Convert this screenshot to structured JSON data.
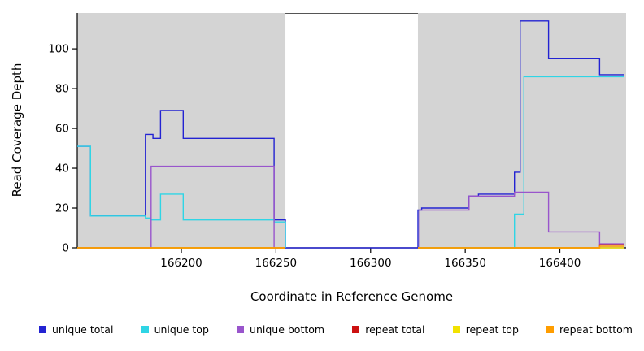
{
  "chart_data": {
    "type": "line",
    "title": "",
    "xlabel": "Coordinate in Reference Genome",
    "ylabel": "Read Coverage Depth",
    "xlim": [
      166145,
      166435
    ],
    "ylim": [
      0,
      118
    ],
    "xticks": [
      166200,
      166250,
      166300,
      166350,
      166400
    ],
    "yticks": [
      0,
      20,
      40,
      60,
      80,
      100
    ],
    "grid": false,
    "legend_position": "bottom",
    "plot_background": "#ffffff",
    "shaded_regions": [
      {
        "x0": 166145,
        "x1": 166255,
        "color": "#d4d4d4"
      },
      {
        "x0": 166325,
        "x1": 166435,
        "color": "#d4d4d4"
      }
    ],
    "series": [
      {
        "name": "unique total",
        "color": "#2323d2",
        "segments": [
          [
            [
              166145,
              51
            ],
            [
              166152,
              51
            ],
            [
              166152,
              16
            ],
            [
              166181,
              16
            ],
            [
              166181,
              57
            ],
            [
              166185,
              57
            ],
            [
              166185,
              55
            ],
            [
              166189,
              55
            ],
            [
              166189,
              69
            ],
            [
              166201,
              69
            ],
            [
              166201,
              55
            ],
            [
              166249,
              55
            ],
            [
              166249,
              14
            ],
            [
              166255,
              14
            ],
            [
              166255,
              0
            ],
            [
              166325,
              0
            ],
            [
              166325,
              19
            ],
            [
              166327,
              19
            ],
            [
              166327,
              20
            ],
            [
              166352,
              20
            ],
            [
              166352,
              26
            ],
            [
              166357,
              26
            ],
            [
              166357,
              27
            ],
            [
              166376,
              27
            ],
            [
              166376,
              38
            ],
            [
              166379,
              38
            ],
            [
              166379,
              114
            ],
            [
              166394,
              114
            ],
            [
              166394,
              95
            ],
            [
              166421,
              95
            ],
            [
              166421,
              87
            ],
            [
              166434,
              87
            ]
          ]
        ]
      },
      {
        "name": "unique top",
        "color": "#2fd5e5",
        "segments": [
          [
            [
              166145,
              51
            ],
            [
              166152,
              51
            ],
            [
              166152,
              16
            ],
            [
              166181,
              16
            ],
            [
              166181,
              15
            ],
            [
              166184,
              15
            ],
            [
              166184,
              14
            ],
            [
              166189,
              14
            ],
            [
              166189,
              27
            ],
            [
              166201,
              27
            ],
            [
              166201,
              14
            ],
            [
              166249,
              14
            ],
            [
              166249,
              13
            ],
            [
              166255,
              13
            ],
            [
              166255,
              0
            ]
          ],
          [
            [
              166325,
              0
            ],
            [
              166376,
              0
            ],
            [
              166376,
              17
            ],
            [
              166381,
              17
            ],
            [
              166381,
              86
            ],
            [
              166434,
              86
            ]
          ]
        ]
      },
      {
        "name": "unique bottom",
        "color": "#9955cc",
        "segments": [
          [
            [
              166145,
              0
            ],
            [
              166184,
              0
            ],
            [
              166184,
              41
            ],
            [
              166249,
              41
            ],
            [
              166249,
              0
            ],
            [
              166255,
              0
            ]
          ],
          [
            [
              166325,
              0
            ],
            [
              166326,
              0
            ],
            [
              166326,
              19
            ],
            [
              166352,
              19
            ],
            [
              166352,
              26
            ],
            [
              166376,
              26
            ],
            [
              166376,
              28
            ],
            [
              166394,
              28
            ],
            [
              166394,
              8
            ],
            [
              166421,
              8
            ],
            [
              166421,
              2
            ],
            [
              166434,
              2
            ]
          ]
        ]
      },
      {
        "name": "repeat total",
        "color": "#cc1111",
        "segments": [
          [
            [
              166145,
              0
            ],
            [
              166255,
              0
            ]
          ],
          [
            [
              166325,
              0
            ],
            [
              166421,
              0
            ],
            [
              166421,
              1.5
            ],
            [
              166434,
              1.5
            ]
          ]
        ]
      },
      {
        "name": "repeat top",
        "color": "#f2e200",
        "segments": [
          [
            [
              166145,
              0
            ],
            [
              166255,
              0
            ]
          ],
          [
            [
              166325,
              0
            ],
            [
              166434,
              0
            ]
          ]
        ]
      },
      {
        "name": "repeat bottom",
        "color": "#ff9d00",
        "segments": [
          [
            [
              166145,
              0
            ],
            [
              166255,
              0
            ]
          ],
          [
            [
              166325,
              0
            ],
            [
              166421,
              0
            ],
            [
              166421,
              0.8
            ],
            [
              166434,
              0.8
            ]
          ]
        ]
      }
    ]
  }
}
